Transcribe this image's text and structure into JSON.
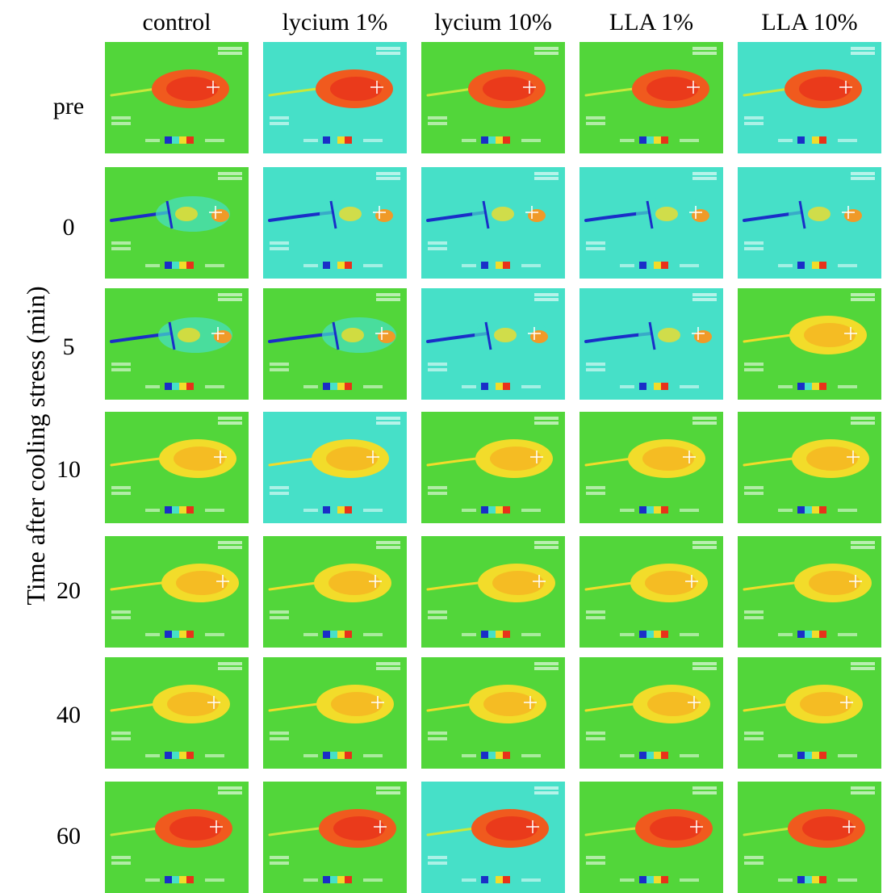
{
  "figure": {
    "y_axis_label": "Time after cooling stress (min)",
    "columns": [
      "control",
      "lycium 1%",
      "lycium 10%",
      "LLA 1%",
      "LLA 10%"
    ],
    "rows": [
      "pre",
      "0",
      "5",
      "10",
      "20",
      "40",
      "60"
    ],
    "colors": {
      "background_green": "#52d63a",
      "background_cyan": "#46e0c8",
      "body_warm": "#f05a1e",
      "body_yellow": "#f2dc2a",
      "cold_blue": "#1a2ec8"
    },
    "tiles": [
      [
        {
          "bg": "green",
          "state": "hot"
        },
        {
          "bg": "cyan",
          "state": "hot"
        },
        {
          "bg": "green",
          "state": "hot"
        },
        {
          "bg": "green",
          "state": "hot"
        },
        {
          "bg": "cyan",
          "state": "hot"
        }
      ],
      [
        {
          "bg": "green",
          "state": "cold"
        },
        {
          "bg": "cyan",
          "state": "cold"
        },
        {
          "bg": "cyan",
          "state": "cold"
        },
        {
          "bg": "cyan",
          "state": "cold"
        },
        {
          "bg": "cyan",
          "state": "cold"
        }
      ],
      [
        {
          "bg": "green",
          "state": "cool"
        },
        {
          "bg": "green",
          "state": "cool"
        },
        {
          "bg": "cyan",
          "state": "cool"
        },
        {
          "bg": "cyan",
          "state": "cool"
        },
        {
          "bg": "green",
          "state": "warm"
        }
      ],
      [
        {
          "bg": "green",
          "state": "warm"
        },
        {
          "bg": "cyan",
          "state": "warm"
        },
        {
          "bg": "green",
          "state": "warm"
        },
        {
          "bg": "green",
          "state": "warm"
        },
        {
          "bg": "green",
          "state": "warm"
        }
      ],
      [
        {
          "bg": "green",
          "state": "warm"
        },
        {
          "bg": "green",
          "state": "warm"
        },
        {
          "bg": "green",
          "state": "warm"
        },
        {
          "bg": "green",
          "state": "warm"
        },
        {
          "bg": "green",
          "state": "warm"
        }
      ],
      [
        {
          "bg": "green",
          "state": "warm"
        },
        {
          "bg": "green",
          "state": "warm"
        },
        {
          "bg": "green",
          "state": "warm"
        },
        {
          "bg": "green",
          "state": "warm"
        },
        {
          "bg": "green",
          "state": "warm"
        }
      ],
      [
        {
          "bg": "green",
          "state": "hot"
        },
        {
          "bg": "green",
          "state": "hot"
        },
        {
          "bg": "cyan",
          "state": "hot"
        },
        {
          "bg": "green",
          "state": "hot"
        },
        {
          "bg": "green",
          "state": "hot"
        }
      ]
    ]
  }
}
